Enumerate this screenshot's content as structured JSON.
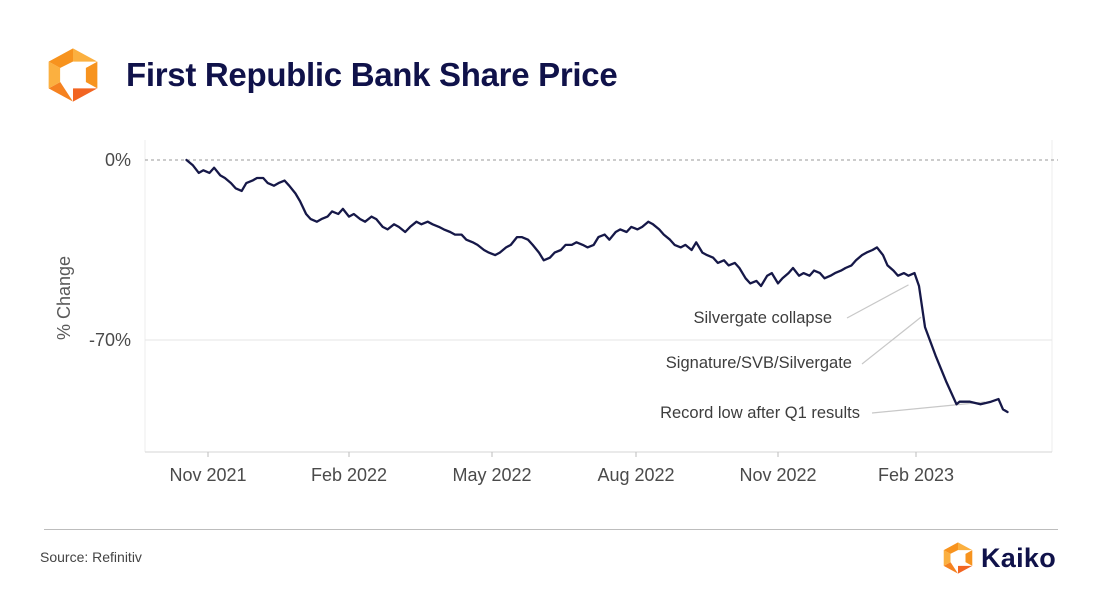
{
  "header": {
    "title": "First Republic Bank Share Price"
  },
  "colors": {
    "line": "#161848",
    "title": "#10124a",
    "brand_orange": "#f7931e",
    "brand_orange_dark": "#e8641c",
    "zero_line": "#9a9a9a",
    "gridline": "#e6e6e6",
    "leader": "#c8c8c8"
  },
  "footer": {
    "source": "Source: Refinitiv",
    "brand_name": "Kaiko"
  },
  "icons": {
    "header_logo": "kaiko-logo-icon",
    "footer_logo": "kaiko-logo-icon"
  },
  "chart_data": {
    "type": "line",
    "title": "First Republic Bank Share Price",
    "ylabel": "% Change",
    "xlabel": "",
    "ylim": [
      -113,
      3
    ],
    "xlim": [
      "2021-10-01",
      "2023-05-15"
    ],
    "y_ticks": [
      {
        "value": 0,
        "label": "0%"
      },
      {
        "value": -70,
        "label": "-70%"
      }
    ],
    "x_ticks": [
      {
        "date": "2021-11-01",
        "label": "Nov 2021"
      },
      {
        "date": "2022-02-01",
        "label": "Feb 2022"
      },
      {
        "date": "2022-05-01",
        "label": "May 2022"
      },
      {
        "date": "2022-08-01",
        "label": "Aug 2022"
      },
      {
        "date": "2022-11-01",
        "label": "Nov 2022"
      },
      {
        "date": "2023-02-01",
        "label": "Feb 2023"
      }
    ],
    "zero_line": "dashed",
    "grid": "horizontal",
    "series": [
      {
        "points": [
          [
            "2021-10-18",
            0
          ],
          [
            "2021-10-22",
            -2
          ],
          [
            "2021-10-26",
            -5
          ],
          [
            "2021-10-29",
            -4
          ],
          [
            "2021-11-02",
            -5
          ],
          [
            "2021-11-05",
            -3
          ],
          [
            "2021-11-09",
            -6
          ],
          [
            "2021-11-12",
            -7
          ],
          [
            "2021-11-16",
            -9
          ],
          [
            "2021-11-19",
            -11
          ],
          [
            "2021-11-23",
            -12
          ],
          [
            "2021-11-26",
            -9
          ],
          [
            "2021-11-30",
            -8
          ],
          [
            "2021-12-03",
            -7
          ],
          [
            "2021-12-07",
            -7
          ],
          [
            "2021-12-10",
            -9
          ],
          [
            "2021-12-14",
            -10
          ],
          [
            "2021-12-17",
            -9
          ],
          [
            "2021-12-21",
            -8
          ],
          [
            "2021-12-24",
            -10
          ],
          [
            "2021-12-28",
            -13
          ],
          [
            "2021-12-31",
            -16
          ],
          [
            "2022-01-04",
            -21
          ],
          [
            "2022-01-07",
            -23
          ],
          [
            "2022-01-11",
            -24
          ],
          [
            "2022-01-14",
            -23
          ],
          [
            "2022-01-18",
            -22
          ],
          [
            "2022-01-21",
            -20
          ],
          [
            "2022-01-25",
            -21
          ],
          [
            "2022-01-28",
            -19
          ],
          [
            "2022-02-01",
            -22
          ],
          [
            "2022-02-04",
            -21
          ],
          [
            "2022-02-08",
            -23
          ],
          [
            "2022-02-11",
            -24
          ],
          [
            "2022-02-15",
            -22
          ],
          [
            "2022-02-18",
            -23
          ],
          [
            "2022-02-22",
            -26
          ],
          [
            "2022-02-25",
            -27
          ],
          [
            "2022-03-01",
            -25
          ],
          [
            "2022-03-04",
            -26
          ],
          [
            "2022-03-08",
            -28
          ],
          [
            "2022-03-11",
            -26
          ],
          [
            "2022-03-15",
            -24
          ],
          [
            "2022-03-18",
            -25
          ],
          [
            "2022-03-22",
            -24
          ],
          [
            "2022-03-25",
            -25
          ],
          [
            "2022-03-29",
            -26
          ],
          [
            "2022-04-01",
            -27
          ],
          [
            "2022-04-05",
            -28
          ],
          [
            "2022-04-08",
            -29
          ],
          [
            "2022-04-12",
            -29
          ],
          [
            "2022-04-15",
            -31
          ],
          [
            "2022-04-19",
            -32
          ],
          [
            "2022-04-22",
            -33
          ],
          [
            "2022-04-26",
            -35
          ],
          [
            "2022-04-29",
            -36
          ],
          [
            "2022-05-03",
            -37
          ],
          [
            "2022-05-06",
            -36
          ],
          [
            "2022-05-10",
            -34
          ],
          [
            "2022-05-13",
            -33
          ],
          [
            "2022-05-17",
            -30
          ],
          [
            "2022-05-20",
            -30
          ],
          [
            "2022-05-24",
            -31
          ],
          [
            "2022-05-27",
            -33
          ],
          [
            "2022-05-31",
            -36
          ],
          [
            "2022-06-03",
            -39
          ],
          [
            "2022-06-07",
            -38
          ],
          [
            "2022-06-10",
            -36
          ],
          [
            "2022-06-14",
            -35
          ],
          [
            "2022-06-17",
            -33
          ],
          [
            "2022-06-21",
            -33
          ],
          [
            "2022-06-24",
            -32
          ],
          [
            "2022-06-28",
            -33
          ],
          [
            "2022-07-01",
            -34
          ],
          [
            "2022-07-05",
            -33
          ],
          [
            "2022-07-08",
            -30
          ],
          [
            "2022-07-12",
            -29
          ],
          [
            "2022-07-15",
            -31
          ],
          [
            "2022-07-19",
            -28
          ],
          [
            "2022-07-22",
            -27
          ],
          [
            "2022-07-26",
            -28
          ],
          [
            "2022-07-29",
            -26
          ],
          [
            "2022-08-02",
            -27
          ],
          [
            "2022-08-05",
            -26
          ],
          [
            "2022-08-09",
            -24
          ],
          [
            "2022-08-12",
            -25
          ],
          [
            "2022-08-16",
            -27
          ],
          [
            "2022-08-19",
            -29
          ],
          [
            "2022-08-23",
            -31
          ],
          [
            "2022-08-26",
            -33
          ],
          [
            "2022-08-30",
            -34
          ],
          [
            "2022-09-02",
            -33
          ],
          [
            "2022-09-06",
            -35
          ],
          [
            "2022-09-09",
            -32
          ],
          [
            "2022-09-13",
            -36
          ],
          [
            "2022-09-16",
            -37
          ],
          [
            "2022-09-20",
            -38
          ],
          [
            "2022-09-23",
            -40
          ],
          [
            "2022-09-27",
            -39
          ],
          [
            "2022-09-30",
            -41
          ],
          [
            "2022-10-04",
            -40
          ],
          [
            "2022-10-07",
            -42
          ],
          [
            "2022-10-11",
            -46
          ],
          [
            "2022-10-14",
            -48
          ],
          [
            "2022-10-18",
            -47
          ],
          [
            "2022-10-21",
            -49
          ],
          [
            "2022-10-25",
            -45
          ],
          [
            "2022-10-28",
            -44
          ],
          [
            "2022-11-01",
            -48
          ],
          [
            "2022-11-04",
            -46
          ],
          [
            "2022-11-08",
            -44
          ],
          [
            "2022-11-11",
            -42
          ],
          [
            "2022-11-15",
            -45
          ],
          [
            "2022-11-18",
            -44
          ],
          [
            "2022-11-22",
            -45
          ],
          [
            "2022-11-25",
            -43
          ],
          [
            "2022-11-29",
            -44
          ],
          [
            "2022-12-02",
            -46
          ],
          [
            "2022-12-06",
            -45
          ],
          [
            "2022-12-09",
            -44
          ],
          [
            "2022-12-13",
            -43
          ],
          [
            "2022-12-16",
            -42
          ],
          [
            "2022-12-20",
            -41
          ],
          [
            "2022-12-23",
            -39
          ],
          [
            "2022-12-27",
            -37
          ],
          [
            "2022-12-30",
            -36
          ],
          [
            "2023-01-03",
            -35
          ],
          [
            "2023-01-06",
            -34
          ],
          [
            "2023-01-10",
            -37
          ],
          [
            "2023-01-13",
            -41
          ],
          [
            "2023-01-17",
            -43
          ],
          [
            "2023-01-20",
            -45
          ],
          [
            "2023-01-24",
            -44
          ],
          [
            "2023-01-27",
            -45
          ],
          [
            "2023-01-31",
            -44
          ],
          [
            "2023-02-03",
            -49
          ],
          [
            "2023-02-07",
            -65
          ],
          [
            "2023-02-14",
            -76
          ],
          [
            "2023-02-21",
            -86
          ],
          [
            "2023-02-28",
            -95
          ],
          [
            "2023-03-02",
            -94
          ],
          [
            "2023-03-09",
            -94
          ],
          [
            "2023-03-16",
            -95
          ],
          [
            "2023-03-23",
            -94
          ],
          [
            "2023-03-28",
            -93
          ],
          [
            "2023-03-31",
            -97
          ],
          [
            "2023-04-03",
            -98
          ]
        ]
      }
    ],
    "annotations": [
      {
        "label": "Silvergate collapse",
        "date": "2023-01-31",
        "value": -47
      },
      {
        "label": "Signature/SVB/Silvergate",
        "date": "2023-02-07",
        "value": -65
      },
      {
        "label": "Record low after Q1 results",
        "date": "2023-03-31",
        "value": -98
      }
    ]
  }
}
